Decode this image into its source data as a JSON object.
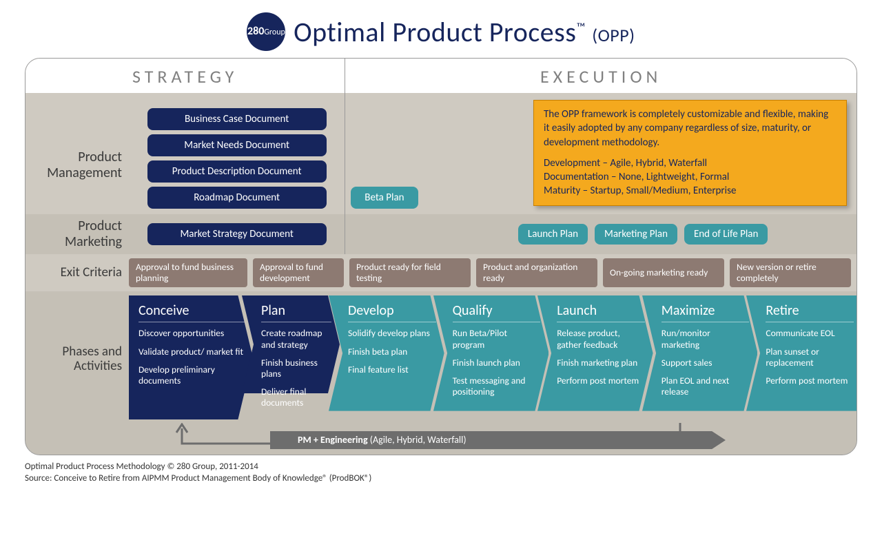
{
  "title": {
    "logo_number": "280",
    "logo_suffix": "Group",
    "main": "Optimal Product Process",
    "tm": "™",
    "abbr": "(OPP)"
  },
  "columns": {
    "strategy": "STRATEGY",
    "execution": "EXECUTION"
  },
  "rows": {
    "product_management": {
      "label_l1": "Product",
      "label_l2": "Management",
      "strategy_docs": [
        "Business Case Document",
        "Market Needs Document",
        "Product Description Document",
        "Roadmap Document"
      ],
      "exec_docs": [
        "Beta Plan"
      ]
    },
    "product_marketing": {
      "label_l1": "Product",
      "label_l2": "Marketing",
      "strategy_docs": [
        "Market Strategy Document"
      ],
      "exec_docs": [
        "Launch Plan",
        "Marketing Plan",
        "End of Life Plan"
      ]
    },
    "exit_criteria": {
      "label": "Exit Criteria",
      "cells": [
        "Approval to fund business planning",
        "Approval to fund development",
        "Product ready for field testing",
        "Product and organization ready",
        "On-going marketing ready",
        "New version or retire completely"
      ]
    },
    "phases": {
      "label_l1": "Phases and",
      "label_l2": "Activities",
      "items": [
        {
          "title": "Conceive",
          "color": "#16255c",
          "acts": [
            "Discover opportunities",
            "Validate product/ market fit",
            "Develop preliminary documents"
          ]
        },
        {
          "title": "Plan",
          "color": "#16255c",
          "acts": [
            "Create roadmap and strategy",
            "Finish business plans",
            "Deliver final documents"
          ]
        },
        {
          "title": "Develop",
          "color": "#3a9aa3",
          "acts": [
            "Solidify develop plans",
            "Finish beta plan",
            "Final feature list"
          ]
        },
        {
          "title": "Qualify",
          "color": "#3a9aa3",
          "acts": [
            "Run Beta/Pilot program",
            "Finish launch plan",
            "Test messaging and positioning"
          ]
        },
        {
          "title": "Launch",
          "color": "#3a9aa3",
          "acts": [
            "Release product, gather feedback",
            "Finish marketing plan",
            "Perform post mortem"
          ]
        },
        {
          "title": "Maximize",
          "color": "#3a9aa3",
          "acts": [
            "Run/monitor marketing",
            "Support sales",
            "Plan EOL and next release"
          ]
        },
        {
          "title": "Retire",
          "color": "#3a9aa3",
          "acts": [
            "Communicate EOL",
            "Plan sunset or replacement",
            "Perform post mortem"
          ]
        }
      ],
      "pm_eng_bold": "PM + Engineering",
      "pm_eng_rest": " (Agile, Hybrid, Waterfall)"
    }
  },
  "callout": {
    "para": "The OPP framework is completely customizable and flexible, making it easily adopted by any company regardless of size, maturity, or development methodology.",
    "l1": "Development – Agile, Hybrid, Waterfall",
    "l2": "Documentation – None, Lightweight, Formal",
    "l3": "Maturity – Startup, Small/Medium, Enterprise"
  },
  "colors": {
    "navy": "#16255c",
    "teal": "#3a9aa3",
    "brown": "#8d7a72",
    "orange": "#f4a91e",
    "bg_beige": "#cfcac1",
    "bg_beige_dark": "#c5c0b6",
    "grey_text": "#808080",
    "pm_eng_grey": "#6d6d6d"
  },
  "footer": {
    "l1": "Optimal Product Process Methodology © 280 Group, 2011-2014",
    "l2": "Source: Conceive to Retire from AIPMM Product Management Body of Knowledge® (ProdBOK®)"
  }
}
